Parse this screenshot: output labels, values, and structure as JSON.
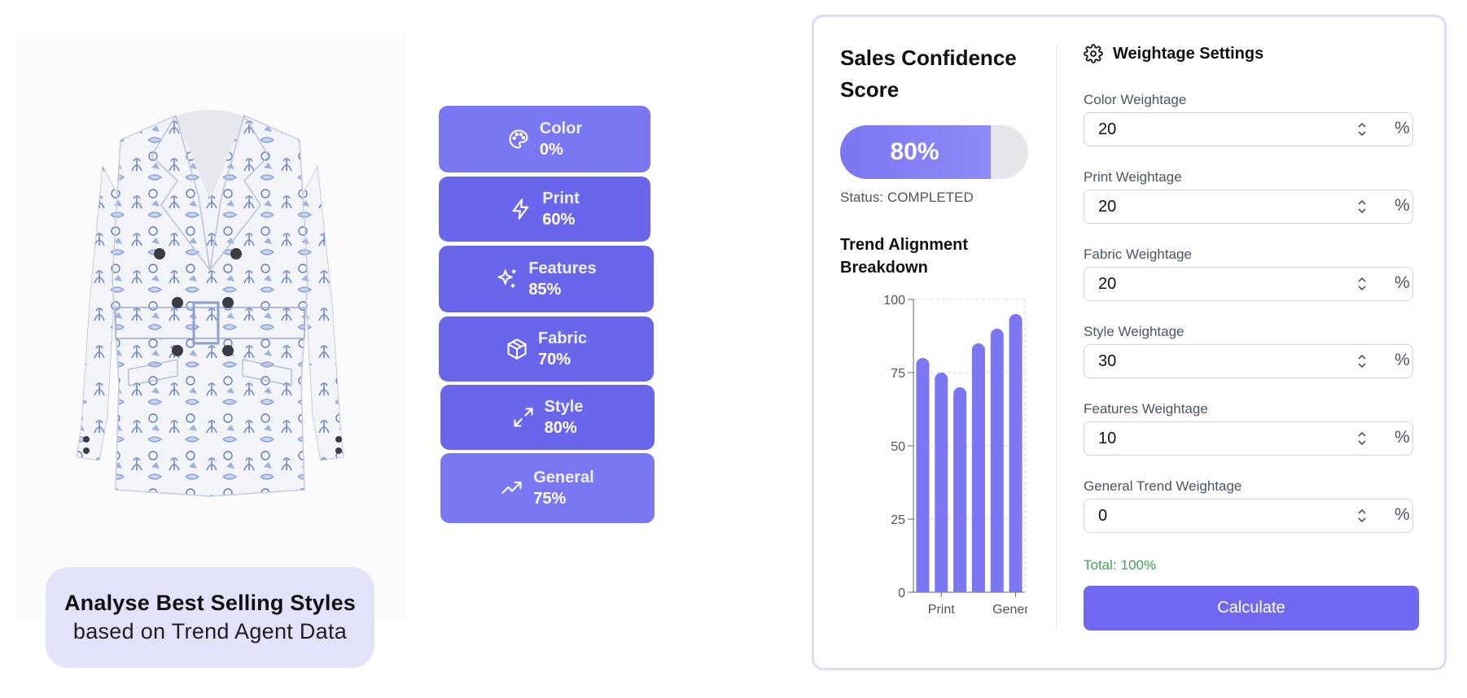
{
  "promo": {
    "title": "Analyse Best Selling Styles",
    "subtitle": "based on Trend Agent Data"
  },
  "attributes": [
    {
      "name": "Color",
      "value": "0%",
      "icon": "palette-icon",
      "color": "#7a77f2"
    },
    {
      "name": "Print",
      "value": "60%",
      "icon": "zap-icon",
      "color": "#6a66ec"
    },
    {
      "name": "Features",
      "value": "85%",
      "icon": "sparkles-icon",
      "color": "#6a66ec"
    },
    {
      "name": "Fabric",
      "value": "70%",
      "icon": "box-icon",
      "color": "#6a66ec"
    },
    {
      "name": "Style",
      "value": "80%",
      "icon": "expand-icon",
      "color": "#6a66ec"
    },
    {
      "name": "General",
      "value": "75%",
      "icon": "trending-up-icon",
      "color": "#7a77f2"
    }
  ],
  "score": {
    "title": "Sales Confidence Score",
    "value_text": "80%",
    "value": 80,
    "status_label": "Status:",
    "status_value": "COMPLETED"
  },
  "trend": {
    "title": "Trend Alignment Breakdown"
  },
  "chart_data": {
    "type": "bar",
    "categories": [
      "Color",
      "Print",
      "Fabric",
      "Features",
      "Style",
      "General"
    ],
    "visible_tick_labels": [
      "Print",
      "General"
    ],
    "values": [
      80,
      75,
      70,
      85,
      90,
      95
    ],
    "ylim": [
      0,
      100
    ],
    "yticks": [
      0,
      25,
      50,
      75,
      100
    ],
    "bar_color": "#7b76f2",
    "grid": true,
    "title": "",
    "xlabel": "",
    "ylabel": ""
  },
  "settings": {
    "title": "Weightage Settings",
    "fields": [
      {
        "label": "Color Weightage",
        "value": "20",
        "unit": "%"
      },
      {
        "label": "Print Weightage",
        "value": "20",
        "unit": "%"
      },
      {
        "label": "Fabric Weightage",
        "value": "20",
        "unit": "%"
      },
      {
        "label": "Style Weightage",
        "value": "30",
        "unit": "%"
      },
      {
        "label": "Features Weightage",
        "value": "10",
        "unit": "%"
      },
      {
        "label": "General Trend Weightage",
        "value": "0",
        "unit": "%"
      }
    ],
    "total_label": "Total:",
    "total_value": "100%",
    "calculate_label": "Calculate"
  },
  "colors": {
    "accent": "#7068f0",
    "panel_border": "#dcdcf9",
    "promo_bg": "#e3e2fb",
    "total_green": "#34a853"
  }
}
